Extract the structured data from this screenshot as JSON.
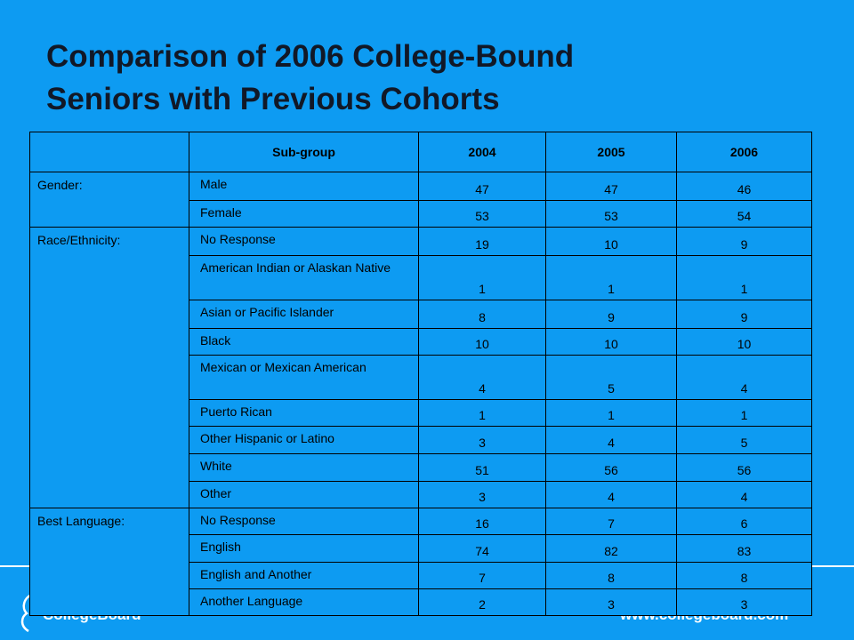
{
  "title": [
    "Comparison of 2006 College-Bound",
    "Seniors with Previous Cohorts"
  ],
  "footer": {
    "logo": "CollegeBoard",
    "url": "www.collegeboard.com"
  },
  "table": {
    "header": [
      "",
      "Sub-group",
      "2004",
      "2005",
      "2006"
    ],
    "groups": [
      {
        "label": "Gender:",
        "rows": [
          [
            "Male",
            47,
            47,
            46
          ],
          [
            "Female",
            53,
            53,
            54
          ]
        ]
      },
      {
        "label": "Race/Ethnicity:",
        "rows": [
          [
            "No Response",
            19,
            10,
            9
          ],
          [
            "American Indian or Alaskan Native",
            1,
            1,
            1
          ],
          [
            "Asian or Pacific Islander",
            8,
            9,
            9
          ],
          [
            "Black",
            10,
            10,
            10
          ],
          [
            "Mexican or Mexican American",
            4,
            5,
            4
          ],
          [
            "Puerto Rican",
            1,
            1,
            1
          ],
          [
            "Other Hispanic or Latino",
            3,
            4,
            5
          ],
          [
            "White",
            51,
            56,
            56
          ],
          [
            "Other",
            3,
            4,
            4
          ]
        ]
      },
      {
        "label": "Best Language:",
        "rows": [
          [
            "No Response",
            16,
            7,
            6
          ],
          [
            "English",
            74,
            82,
            83
          ],
          [
            "English and Another",
            7,
            8,
            8
          ],
          [
            "Another Language",
            2,
            3,
            3
          ]
        ]
      }
    ]
  }
}
